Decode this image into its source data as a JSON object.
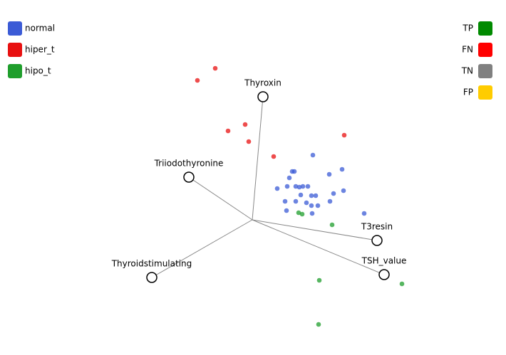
{
  "chart_data": {
    "type": "radviz",
    "xlim": [
      -1.77,
      1.78
    ],
    "ylim": [
      -0.95,
      1.545
    ],
    "anchors": [
      {
        "name": "Thyroxin",
        "x": 0.075,
        "y": 0.865
      },
      {
        "name": "Triiodothyronine",
        "x": -0.445,
        "y": 0.3
      },
      {
        "name": "Thyroidstimulating",
        "x": -0.705,
        "y": -0.405
      },
      {
        "name": "T3resin",
        "x": 0.875,
        "y": -0.145
      },
      {
        "name": "TSH_value",
        "x": 0.925,
        "y": -0.385
      }
    ],
    "series": [
      {
        "name": "normal",
        "color": "#3b5bd6",
        "x": [
          0.425,
          0.28,
          0.295,
          0.26,
          0.54,
          0.63,
          0.175,
          0.245,
          0.305,
          0.33,
          0.39,
          0.34,
          0.415,
          0.445,
          0.57,
          0.64,
          0.23,
          0.305,
          0.38,
          0.415,
          0.46,
          0.545,
          0.24,
          0.42,
          0.785,
          0.355
        ],
        "y": [
          0.455,
          0.34,
          0.34,
          0.295,
          0.32,
          0.355,
          0.22,
          0.235,
          0.235,
          0.23,
          0.235,
          0.175,
          0.17,
          0.17,
          0.185,
          0.205,
          0.13,
          0.13,
          0.12,
          0.1,
          0.1,
          0.13,
          0.065,
          0.045,
          0.045,
          0.235
        ]
      },
      {
        "name": "hiper_t",
        "color": "#e81010",
        "x": [
          -0.26,
          -0.385,
          -0.05,
          -0.17,
          -0.025,
          0.15,
          0.645
        ],
        "y": [
          1.065,
          0.98,
          0.67,
          0.625,
          0.55,
          0.445,
          0.595
        ]
      },
      {
        "name": "hipo_t",
        "color": "#1f9e2c",
        "x": [
          0.325,
          0.35,
          0.56,
          0.47,
          1.05,
          0.465
        ],
        "y": [
          0.05,
          0.04,
          -0.035,
          -0.425,
          -0.45,
          -0.735
        ]
      }
    ],
    "outcome_legend": [
      {
        "name": "TP",
        "color": "#008a00"
      },
      {
        "name": "FN",
        "color": "#ff0000"
      },
      {
        "name": "TN",
        "color": "#808080"
      },
      {
        "name": "FP",
        "color": "#ffcc00"
      }
    ]
  }
}
